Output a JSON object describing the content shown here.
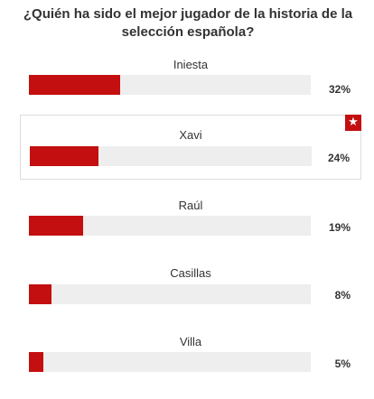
{
  "poll": {
    "question": "¿Quién ha sido el mejor jugador de la historia de la selección española?",
    "accent_color": "#c40f10",
    "options": [
      {
        "label": "Iniesta",
        "percent_label": "32%",
        "percent": 32,
        "selected": false
      },
      {
        "label": "Xavi",
        "percent_label": "24%",
        "percent": 24,
        "selected": true,
        "badge_icon": "star-icon"
      },
      {
        "label": "Raúl",
        "percent_label": "19%",
        "percent": 19,
        "selected": false
      },
      {
        "label": "Casillas",
        "percent_label": "8%",
        "percent": 8,
        "selected": false
      },
      {
        "label": "Villa",
        "percent_label": "5%",
        "percent": 5,
        "selected": false
      }
    ]
  }
}
